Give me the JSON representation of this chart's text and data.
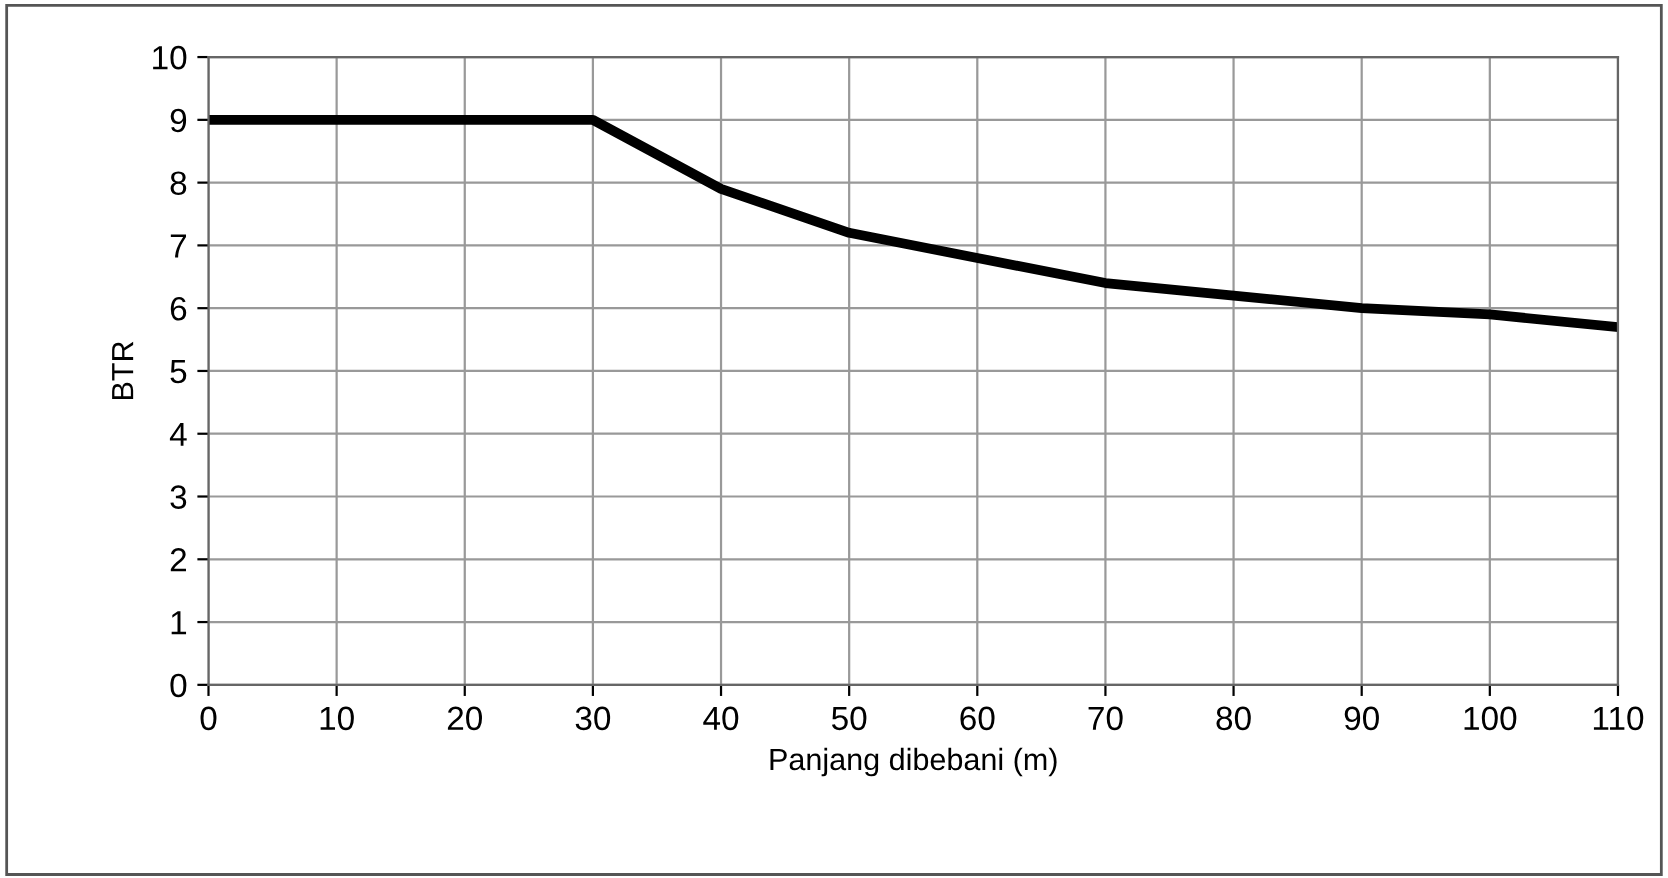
{
  "chart_data": {
    "type": "line",
    "xlabel": "Panjang dibebani (m)",
    "ylabel": "BTR",
    "x": [
      0,
      10,
      20,
      30,
      40,
      50,
      60,
      70,
      80,
      90,
      100,
      110
    ],
    "series": [
      {
        "color": "#000000",
        "values": [
          9,
          9,
          9,
          9,
          7.9,
          7.2,
          6.8,
          6.4,
          6.2,
          6.0,
          5.9,
          5.7
        ]
      }
    ],
    "xlim": [
      0,
      110
    ],
    "xticks": [
      0,
      10,
      20,
      30,
      40,
      50,
      60,
      70,
      80,
      90,
      100,
      110
    ],
    "ylim": [
      0,
      10
    ],
    "yticks": [
      0,
      1,
      2,
      3,
      4,
      5,
      6,
      7,
      8,
      9,
      10
    ],
    "grid": true,
    "marker": "none",
    "line_style": "solid"
  }
}
